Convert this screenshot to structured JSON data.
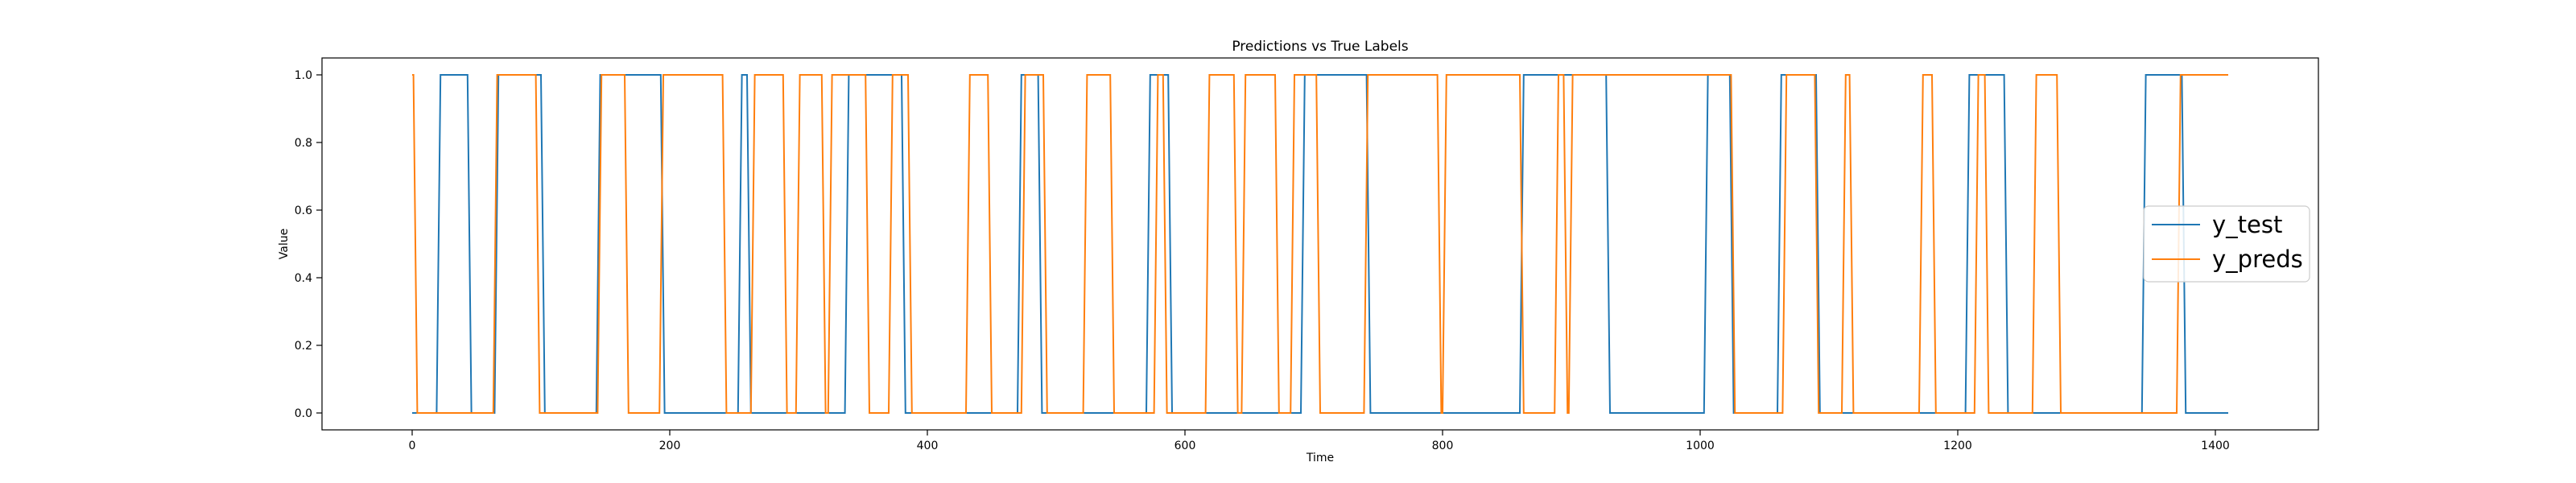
{
  "chart_data": {
    "type": "line",
    "title": "Predictions vs True Labels",
    "xlabel": "Time",
    "ylabel": "Value",
    "xlim": [
      -70,
      1480
    ],
    "ylim": [
      -0.05,
      1.05
    ],
    "xticks": [
      0,
      200,
      400,
      600,
      800,
      1000,
      1200,
      1400
    ],
    "yticks": [
      "0.0",
      "0.2",
      "0.4",
      "0.6",
      "0.8",
      "1.0"
    ],
    "legend_position": "center-right",
    "grid": false,
    "series": [
      {
        "name": "y_test",
        "color": "#1f77b4",
        "x": [
          0,
          19,
          22,
          43,
          46,
          64,
          67,
          100,
          103,
          143,
          146,
          193,
          196,
          253,
          256,
          260,
          263,
          336,
          339,
          380,
          383,
          470,
          473,
          486,
          489,
          570,
          573,
          587,
          590,
          690,
          693,
          741,
          744,
          860,
          863,
          927,
          930,
          1003,
          1006,
          1023,
          1026,
          1060,
          1063,
          1090,
          1093,
          1206,
          1209,
          1236,
          1239,
          1343,
          1346,
          1374,
          1377,
          1410
        ],
        "values": [
          0,
          0,
          1,
          1,
          0,
          0,
          1,
          1,
          0,
          0,
          1,
          1,
          0,
          0,
          1,
          1,
          0,
          0,
          1,
          1,
          0,
          0,
          1,
          1,
          0,
          0,
          1,
          1,
          0,
          0,
          1,
          1,
          0,
          0,
          1,
          1,
          0,
          0,
          1,
          1,
          0,
          0,
          1,
          1,
          0,
          0,
          1,
          1,
          0,
          0,
          1,
          1,
          0,
          0
        ]
      },
      {
        "name": "y_preds",
        "color": "#ff7f0e",
        "x": [
          0,
          1,
          4,
          63,
          66,
          96,
          99,
          144,
          147,
          165,
          168,
          192,
          195,
          241,
          244,
          263,
          266,
          288,
          291,
          298,
          301,
          318,
          321,
          323,
          326,
          352,
          355,
          370,
          373,
          385,
          388,
          430,
          433,
          447,
          450,
          473,
          476,
          490,
          493,
          521,
          524,
          542,
          545,
          576,
          579,
          583,
          586,
          616,
          619,
          638,
          641,
          644,
          647,
          670,
          673,
          682,
          685,
          702,
          705,
          739,
          742,
          796,
          799,
          800,
          803,
          860,
          863,
          887,
          890,
          894,
          897,
          898,
          901,
          1024,
          1027,
          1064,
          1067,
          1089,
          1092,
          1110,
          1113,
          1116,
          1119,
          1170,
          1173,
          1180,
          1183,
          1213,
          1216,
          1221,
          1224,
          1258,
          1261,
          1277,
          1280,
          1370,
          1373,
          1410
        ],
        "values": [
          1,
          1,
          0,
          0,
          1,
          1,
          0,
          0,
          1,
          1,
          0,
          0,
          1,
          1,
          0,
          0,
          1,
          1,
          0,
          0,
          1,
          1,
          0,
          0,
          1,
          1,
          0,
          0,
          1,
          1,
          0,
          0,
          1,
          1,
          0,
          0,
          1,
          1,
          0,
          0,
          1,
          1,
          0,
          0,
          1,
          1,
          0,
          0,
          1,
          1,
          0,
          0,
          1,
          1,
          0,
          0,
          1,
          1,
          0,
          0,
          1,
          1,
          0,
          0,
          1,
          1,
          0,
          0,
          1,
          1,
          0,
          0,
          1,
          1,
          0,
          0,
          1,
          1,
          0,
          0,
          1,
          1,
          0,
          0,
          1,
          1,
          0,
          0,
          1,
          1,
          0,
          0,
          1,
          1,
          0,
          0,
          1,
          1
        ]
      }
    ]
  }
}
